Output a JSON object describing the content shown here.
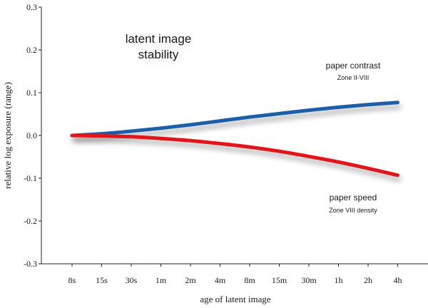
{
  "chart_data": {
    "type": "line",
    "title": "",
    "xlabel": "age of latent image",
    "ylabel": "relative log exposure (range)",
    "categories": [
      "8s",
      "15s",
      "30s",
      "1m",
      "2m",
      "4m",
      "8m",
      "15m",
      "30m",
      "1h",
      "2h",
      "4h"
    ],
    "yticks": [
      "0.3",
      "0.2",
      "0.1",
      "0.0",
      "-0.1",
      "-0.2",
      "-0.3"
    ],
    "ylim": [
      -0.3,
      0.3
    ],
    "grid": false,
    "series": [
      {
        "name": "paper contrast",
        "color": "#1f5fa8",
        "values": [
          0.0,
          0.004,
          0.01,
          0.017,
          0.025,
          0.034,
          0.043,
          0.051,
          0.059,
          0.066,
          0.072,
          0.077
        ]
      },
      {
        "name": "paper speed",
        "color": "#e0141a",
        "values": [
          0.0,
          -0.001,
          -0.003,
          -0.007,
          -0.012,
          -0.019,
          -0.027,
          -0.037,
          -0.049,
          -0.062,
          -0.077,
          -0.093
        ]
      }
    ],
    "annotations": {
      "main": [
        "latent image",
        "stability"
      ],
      "contrast_label": "paper contrast",
      "contrast_sub": "Zone II-VIII",
      "speed_label": "paper speed",
      "speed_sub": "Zone VIII density"
    }
  }
}
